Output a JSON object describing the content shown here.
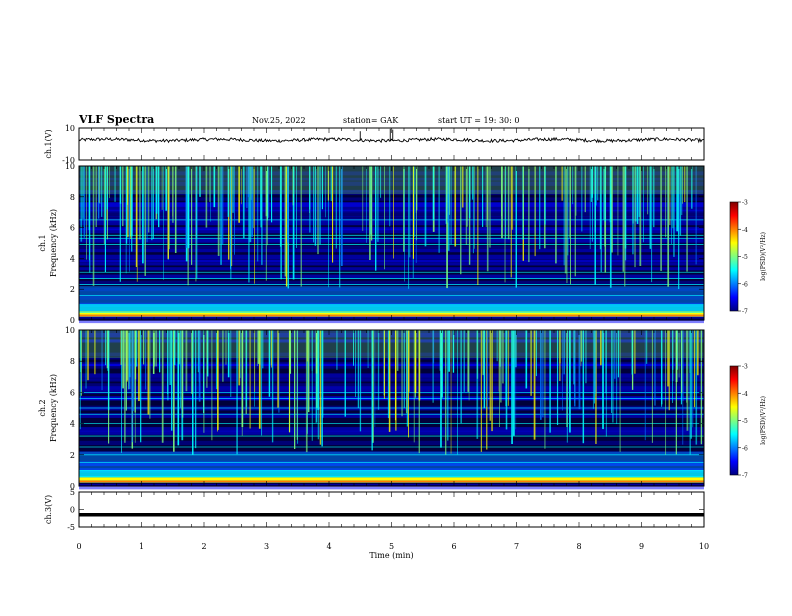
{
  "header": {
    "title": "VLF Spectra",
    "date": "Nov.25, 2022",
    "station": "station= GAK",
    "start": "start  UT =   19: 30: 0"
  },
  "chart_data": [
    {
      "type": "line",
      "panel": "ch1-waveform",
      "ylabel": "ch.1(V)",
      "ylim": [
        -10,
        10
      ],
      "yticks": [
        "10",
        "-10"
      ],
      "description_values": {
        "baseline": 2.5,
        "amplitude": 1.0
      }
    },
    {
      "type": "heatmap",
      "panel": "ch1-spectrogram",
      "ylabel_line1": "ch.1",
      "ylabel_line2": "Frequency  (kHz)",
      "ylim": [
        0,
        10
      ],
      "yticks": [
        "0",
        "2",
        "4",
        "6",
        "8",
        "10"
      ],
      "bands_khz": [
        0.5,
        1.0,
        1.6,
        2.3,
        2.7,
        3.1,
        4.9,
        5.3,
        5.5,
        6.5
      ],
      "colorbar": {
        "label": "log(PSD)(V²/Hz)",
        "ticks": [
          "-3",
          "-4",
          "-5",
          "-6",
          "-7"
        ],
        "range": [
          -7,
          -3
        ]
      }
    },
    {
      "type": "heatmap",
      "panel": "ch2-spectrogram",
      "ylabel_line1": "ch.2",
      "ylabel_line2": "Frequency  (kHz)",
      "ylim": [
        0,
        10
      ],
      "yticks": [
        "0",
        "2",
        "4",
        "6",
        "8",
        "10"
      ],
      "bands_khz": [
        0.6,
        1.0,
        1.5,
        2.0,
        2.5,
        3.2,
        4.0,
        4.6,
        5.0,
        5.6,
        6.0
      ],
      "colorbar": {
        "label": "log(PSD)(V²/Hz)",
        "ticks": [
          "-3",
          "-4",
          "-5",
          "-6",
          "-7"
        ],
        "range": [
          -7,
          -3
        ]
      }
    },
    {
      "type": "line",
      "panel": "ch3-waveform",
      "ylabel": "ch.3(V)",
      "ylim": [
        -5,
        5
      ],
      "yticks": [
        "5",
        "0",
        "-5"
      ],
      "description_values": {
        "baseline": -1.5
      }
    }
  ],
  "xaxis": {
    "label": "Time  (min)",
    "ticks": [
      "0",
      "1",
      "2",
      "3",
      "4",
      "5",
      "6",
      "7",
      "8",
      "9",
      "10"
    ],
    "range": [
      0,
      10
    ]
  },
  "colors": {
    "jet": [
      "#00007f",
      "#0000ff",
      "#007fff",
      "#00ffff",
      "#7fff7f",
      "#ffff00",
      "#ff7f00",
      "#ff0000",
      "#7f0000"
    ]
  }
}
